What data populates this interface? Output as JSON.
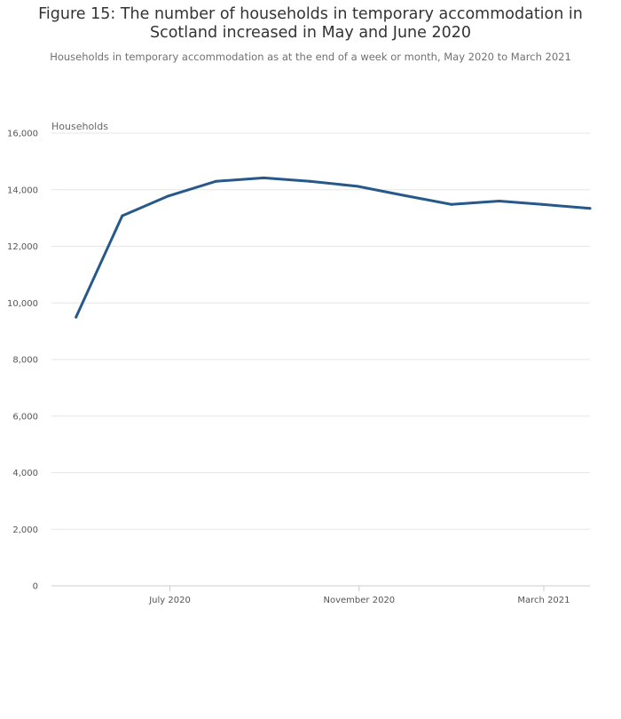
{
  "chart_data": {
    "type": "line",
    "title": "Figure 15: The number of households in temporary accommodation in Scotland increased in May and June 2020",
    "subtitle": "Households in temporary accommodation as at the end of a week or month, May 2020 to March 2021",
    "ylabel": "Households",
    "xlabel": "",
    "ylim": [
      0,
      16000
    ],
    "yticks": [
      0,
      2000,
      4000,
      6000,
      8000,
      10000,
      12000,
      14000,
      16000
    ],
    "ytick_labels": [
      "0",
      "2,000",
      "4,000",
      "6,000",
      "8,000",
      "10,000",
      "12,000",
      "14,000",
      "16,000"
    ],
    "xlim": [
      "2020-04-15",
      "2021-03-31"
    ],
    "xticks": [
      {
        "date": "2020-07-01",
        "label": "July 2020"
      },
      {
        "date": "2020-11-01",
        "label": "November 2020"
      },
      {
        "date": "2021-03-01",
        "label": "March 2021"
      }
    ],
    "grid": true,
    "series": [
      {
        "color": "#26598a",
        "points": [
          {
            "x": "2020-05-01",
            "y": 9500
          },
          {
            "x": "2020-05-31",
            "y": 13080
          },
          {
            "x": "2020-06-30",
            "y": 13780
          },
          {
            "x": "2020-07-31",
            "y": 14300
          },
          {
            "x": "2020-08-31",
            "y": 14420
          },
          {
            "x": "2020-09-30",
            "y": 14300
          },
          {
            "x": "2020-10-31",
            "y": 14120
          },
          {
            "x": "2020-11-30",
            "y": 13800
          },
          {
            "x": "2020-12-31",
            "y": 13480
          },
          {
            "x": "2021-01-31",
            "y": 13600
          },
          {
            "x": "2021-02-28",
            "y": 13480
          },
          {
            "x": "2021-03-31",
            "y": 13340
          }
        ]
      }
    ]
  }
}
